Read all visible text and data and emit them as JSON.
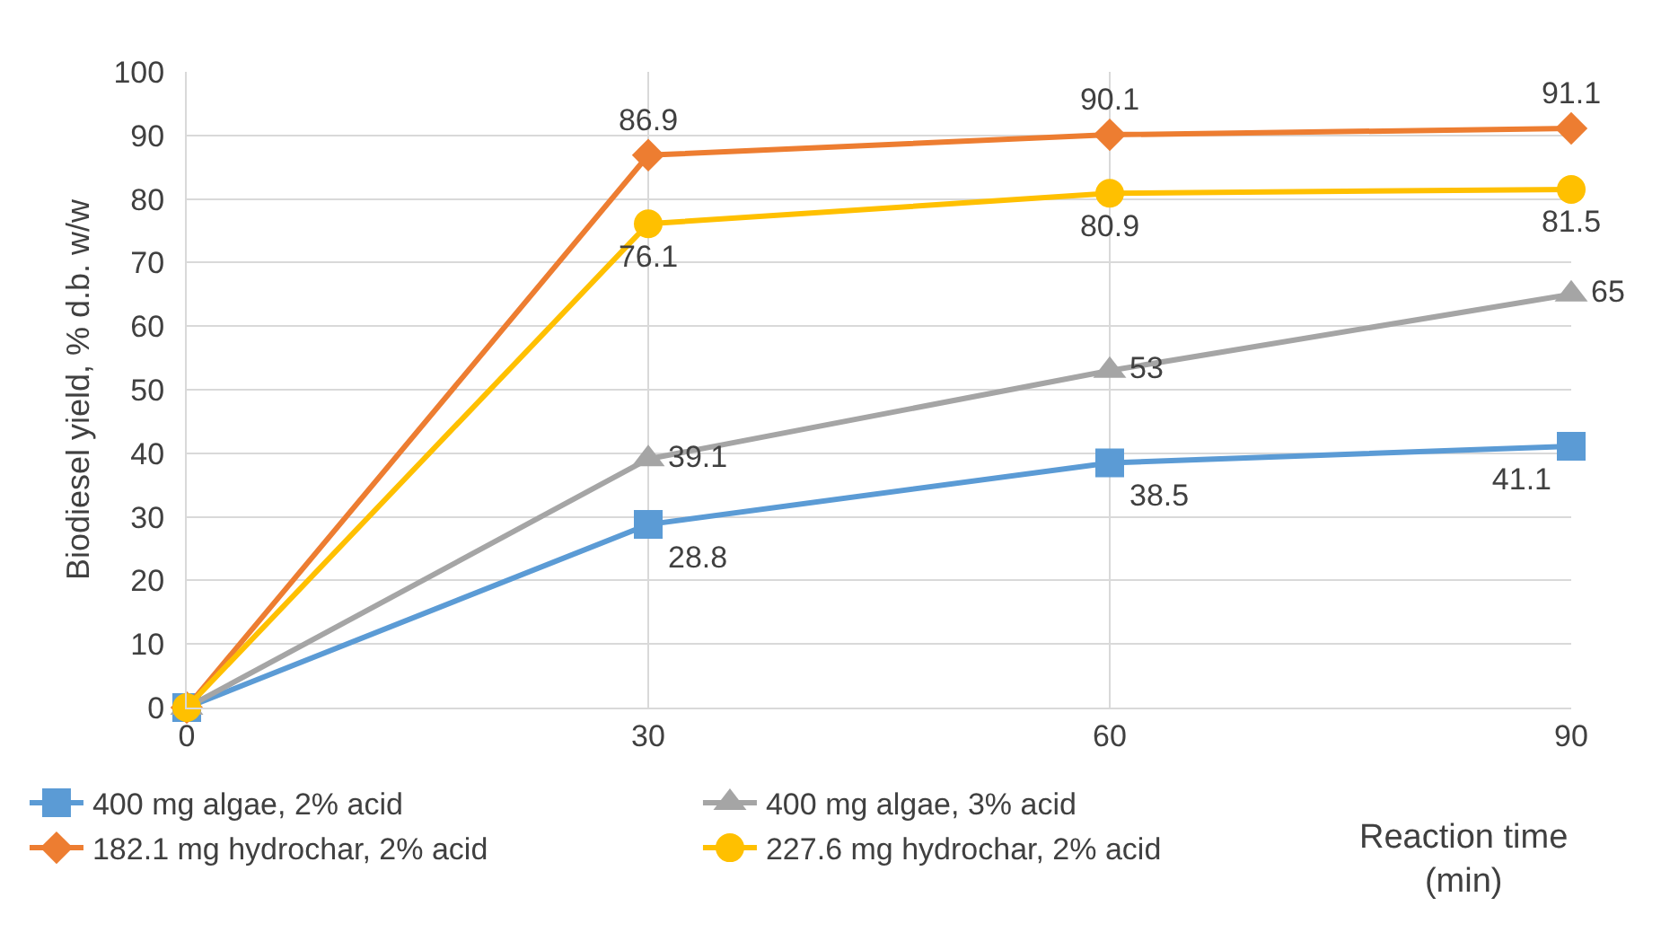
{
  "chart_data": {
    "type": "line",
    "xlabel": "Reaction time (min)",
    "ylabel": "Biodiesel yield, % d.b. w/w",
    "x": [
      0,
      30,
      60,
      90
    ],
    "xlim": [
      0,
      90
    ],
    "xticks": [
      0,
      30,
      60,
      90
    ],
    "ylim": [
      0,
      100
    ],
    "yticks": [
      0,
      10,
      20,
      30,
      40,
      50,
      60,
      70,
      80,
      90,
      100
    ],
    "grid": true,
    "legend": "bottom",
    "series": [
      {
        "name": "400 mg algae, 2% acid",
        "color": "#5b9bd5",
        "marker": "square",
        "values": [
          0,
          28.8,
          38.5,
          41.1
        ],
        "value_labels": [
          null,
          "28.8",
          "38.5",
          "41.1"
        ]
      },
      {
        "name": "400 mg algae, 3% acid",
        "color": "#a5a5a5",
        "marker": "triangle",
        "values": [
          0,
          39.1,
          53,
          65
        ],
        "value_labels": [
          null,
          "39.1",
          "53",
          "65"
        ]
      },
      {
        "name": "182.1 mg hydrochar, 2% acid",
        "color": "#ed7d31",
        "marker": "diamond",
        "values": [
          0,
          86.9,
          90.1,
          91.1
        ],
        "value_labels": [
          null,
          "86.9",
          "90.1",
          "91.1"
        ]
      },
      {
        "name": "227.6 mg hydrochar, 2% acid",
        "color": "#ffc000",
        "marker": "circle",
        "values": [
          0,
          76.1,
          80.9,
          81.5
        ],
        "value_labels": [
          null,
          "76.1",
          "80.9",
          "81.5"
        ]
      }
    ]
  }
}
